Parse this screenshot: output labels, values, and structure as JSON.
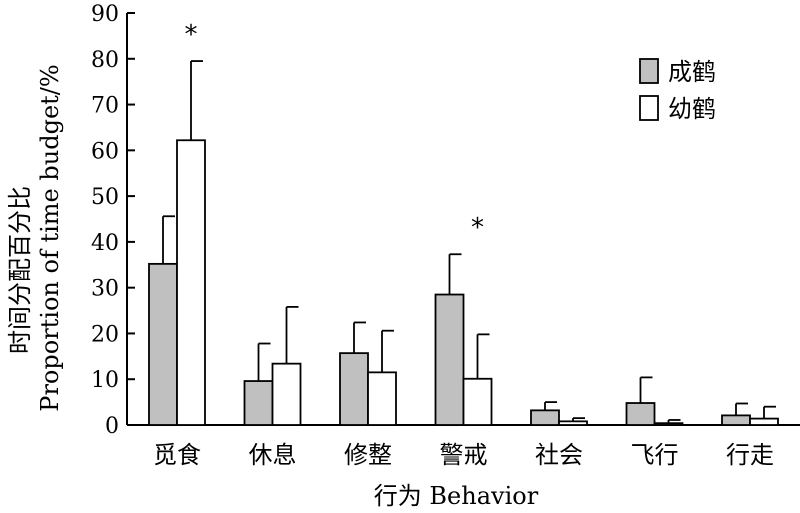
{
  "chart_data": {
    "type": "bar",
    "categories": [
      "觅食",
      "休息",
      "修整",
      "警戒",
      "社会",
      "飞行",
      "行走"
    ],
    "series": [
      {
        "name": "成鹤",
        "color": "#c0c0c0",
        "values": [
          35.2,
          9.6,
          15.7,
          28.5,
          3.2,
          4.8,
          2.1
        ],
        "errors": [
          10.4,
          8.2,
          6.7,
          8.8,
          1.8,
          5.6,
          2.6
        ]
      },
      {
        "name": "幼鹤",
        "color": "#ffffff",
        "values": [
          62.2,
          13.4,
          11.5,
          10.1,
          0.8,
          0.4,
          1.4
        ],
        "errors": [
          17.3,
          12.4,
          9.1,
          9.7,
          0.7,
          0.7,
          2.6
        ]
      }
    ],
    "significance": [
      "*",
      "",
      "",
      "*",
      "",
      "",
      ""
    ],
    "xlabel": "行为 Behavior",
    "ylabel_cn": "时间分配百分比",
    "ylabel_en": "Proportion of time budget/%",
    "ylim": [
      0,
      90
    ],
    "yticks": [
      0,
      10,
      20,
      30,
      40,
      50,
      60,
      70,
      80,
      90
    ],
    "grid": false,
    "legend_position": "top-right"
  }
}
